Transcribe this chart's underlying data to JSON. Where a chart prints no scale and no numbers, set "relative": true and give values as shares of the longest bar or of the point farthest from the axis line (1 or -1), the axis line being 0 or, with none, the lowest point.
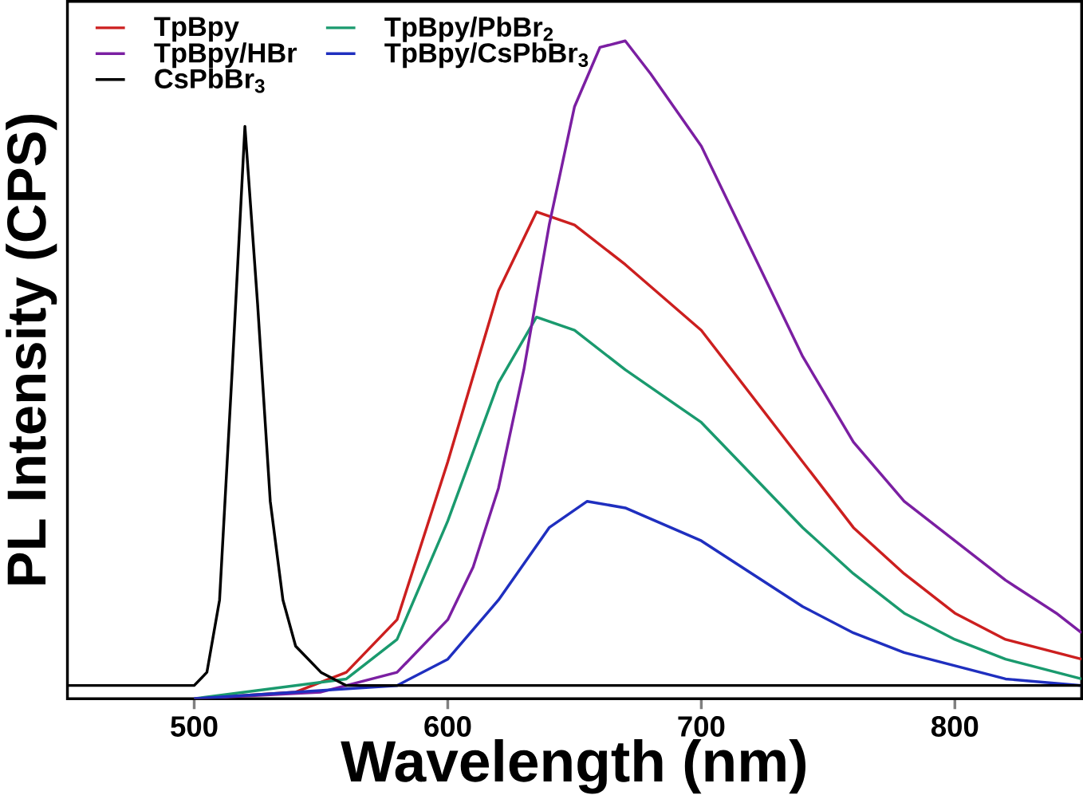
{
  "chart_data": {
    "type": "line",
    "xlabel": "Wavelength (nm)",
    "ylabel": "PL Intensity (CPS)",
    "relative": true,
    "xlim": [
      450,
      850
    ],
    "xticks": [
      500,
      600,
      700,
      800
    ],
    "legend": "top left",
    "line_style": "solid",
    "series": [
      {
        "name": "TpBpy",
        "color": "#cc1f1f",
        "x": [
          500,
          540,
          560,
          580,
          600,
          620,
          635,
          650,
          670,
          700,
          720,
          740,
          760,
          780,
          800,
          820,
          840,
          850
        ],
        "values": [
          0,
          0.01,
          0.04,
          0.12,
          0.36,
          0.62,
          0.74,
          0.72,
          0.66,
          0.56,
          0.46,
          0.36,
          0.26,
          0.19,
          0.13,
          0.09,
          0.07,
          0.06
        ]
      },
      {
        "name": "TpBpy/PbBr$_{2}$",
        "color": "#1a9a6e",
        "x": [
          500,
          560,
          580,
          600,
          620,
          635,
          650,
          670,
          700,
          720,
          740,
          760,
          780,
          800,
          820,
          840,
          850
        ],
        "values": [
          0,
          0.03,
          0.09,
          0.27,
          0.48,
          0.58,
          0.56,
          0.5,
          0.42,
          0.34,
          0.26,
          0.19,
          0.13,
          0.09,
          0.06,
          0.04,
          0.03
        ]
      },
      {
        "name": "TpBpy/HBr",
        "color": "#7b1fa2",
        "x": [
          500,
          550,
          580,
          600,
          610,
          620,
          630,
          640,
          650,
          660,
          670,
          680,
          700,
          720,
          740,
          760,
          780,
          800,
          820,
          840,
          850
        ],
        "values": [
          0,
          0.01,
          0.04,
          0.12,
          0.2,
          0.32,
          0.5,
          0.72,
          0.9,
          0.99,
          1.0,
          0.95,
          0.84,
          0.68,
          0.52,
          0.39,
          0.3,
          0.24,
          0.18,
          0.13,
          0.1
        ]
      },
      {
        "name": "TpBpy/CsPbBr$_{3}$",
        "color": "#1f2fbf",
        "x": [
          500,
          580,
          600,
          620,
          640,
          655,
          670,
          700,
          720,
          740,
          760,
          780,
          800,
          820,
          850
        ],
        "values": [
          0,
          0.02,
          0.06,
          0.15,
          0.26,
          0.3,
          0.29,
          0.24,
          0.19,
          0.14,
          0.1,
          0.07,
          0.05,
          0.03,
          0.02
        ]
      },
      {
        "name": "CsPbBr$_{3}$",
        "color": "#000000",
        "x": [
          450,
          500,
          505,
          510,
          515,
          520,
          525,
          530,
          535,
          540,
          550,
          560,
          600,
          700,
          800,
          850
        ],
        "values": [
          0.02,
          0.02,
          0.04,
          0.15,
          0.5,
          0.87,
          0.6,
          0.3,
          0.15,
          0.08,
          0.04,
          0.02,
          0.02,
          0.02,
          0.02,
          0.02
        ]
      }
    ]
  }
}
